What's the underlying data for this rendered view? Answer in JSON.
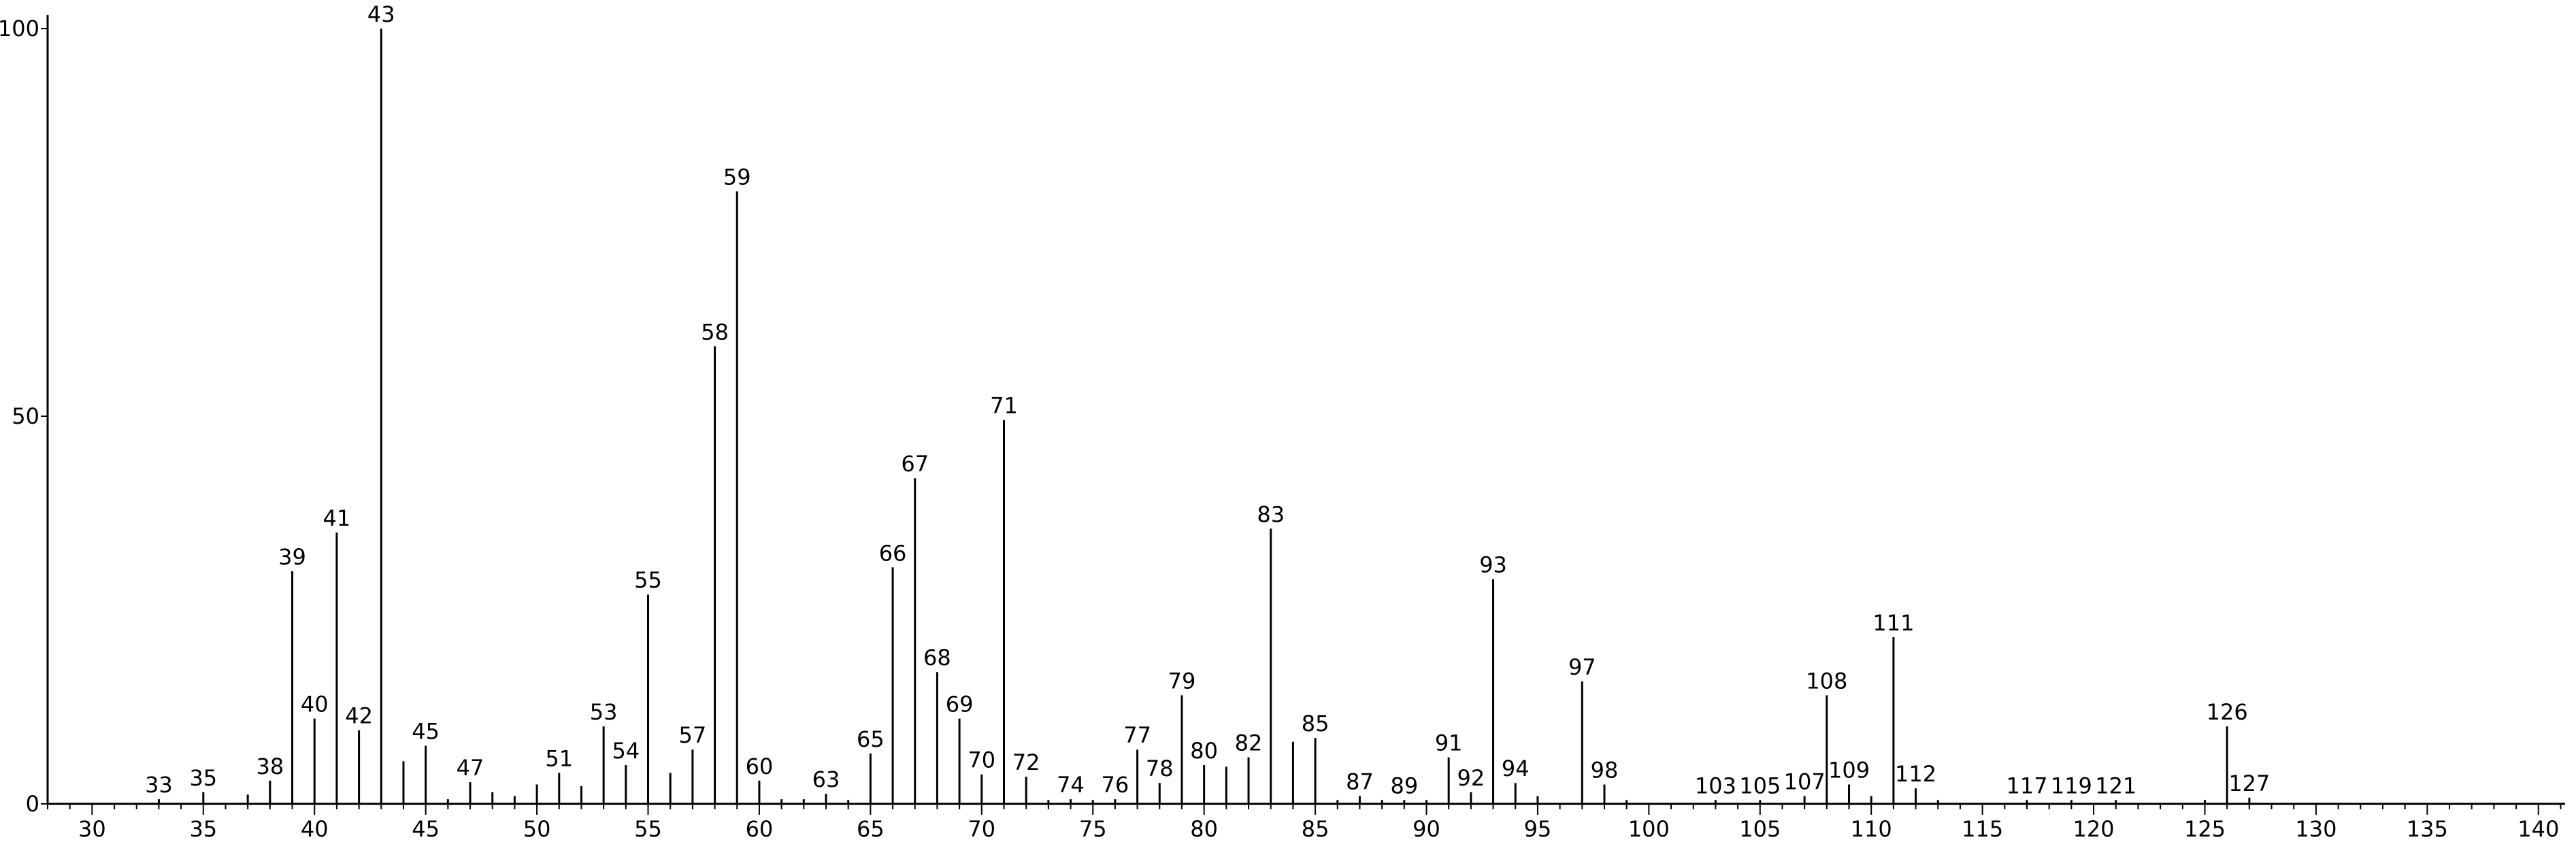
{
  "chart_data": {
    "type": "bar",
    "title": "",
    "xlabel": "",
    "ylabel": "",
    "xlim": [
      28,
      141.2
    ],
    "ylim": [
      0,
      100
    ],
    "grid": false,
    "x_ticks": [
      30,
      35,
      40,
      45,
      50,
      55,
      60,
      65,
      70,
      75,
      80,
      85,
      90,
      95,
      100,
      105,
      110,
      115,
      120,
      125,
      130,
      135,
      140
    ],
    "y_ticks": [
      0,
      50,
      100
    ],
    "peaks": [
      {
        "x": 33,
        "y": 0.6,
        "label": "33"
      },
      {
        "x": 35,
        "y": 1.5,
        "label": "35"
      },
      {
        "x": 37,
        "y": 1.2,
        "label": ""
      },
      {
        "x": 38,
        "y": 3.0,
        "label": "38"
      },
      {
        "x": 39,
        "y": 30.0,
        "label": "39"
      },
      {
        "x": 40,
        "y": 11.0,
        "label": "40"
      },
      {
        "x": 41,
        "y": 35.0,
        "label": "41"
      },
      {
        "x": 42,
        "y": 9.5,
        "label": "42"
      },
      {
        "x": 43,
        "y": 100.0,
        "label": "43"
      },
      {
        "x": 44,
        "y": 5.5,
        "label": ""
      },
      {
        "x": 45,
        "y": 7.5,
        "label": "45"
      },
      {
        "x": 46,
        "y": 0.6,
        "label": ""
      },
      {
        "x": 47,
        "y": 2.8,
        "label": "47"
      },
      {
        "x": 48,
        "y": 1.5,
        "label": ""
      },
      {
        "x": 49,
        "y": 1.0,
        "label": ""
      },
      {
        "x": 50,
        "y": 2.5,
        "label": ""
      },
      {
        "x": 51,
        "y": 4.0,
        "label": "51"
      },
      {
        "x": 52,
        "y": 2.3,
        "label": ""
      },
      {
        "x": 53,
        "y": 10.0,
        "label": "53"
      },
      {
        "x": 54,
        "y": 5.0,
        "label": "54"
      },
      {
        "x": 55,
        "y": 27.0,
        "label": "55"
      },
      {
        "x": 56,
        "y": 4.0,
        "label": ""
      },
      {
        "x": 57,
        "y": 7.0,
        "label": "57"
      },
      {
        "x": 58,
        "y": 59.0,
        "label": "58"
      },
      {
        "x": 59,
        "y": 79.0,
        "label": "59"
      },
      {
        "x": 60,
        "y": 3.0,
        "label": "60"
      },
      {
        "x": 61,
        "y": 0.6,
        "label": ""
      },
      {
        "x": 62,
        "y": 0.6,
        "label": ""
      },
      {
        "x": 63,
        "y": 1.3,
        "label": "63"
      },
      {
        "x": 64,
        "y": 0.5,
        "label": ""
      },
      {
        "x": 65,
        "y": 6.5,
        "label": "65"
      },
      {
        "x": 66,
        "y": 30.5,
        "label": "66"
      },
      {
        "x": 67,
        "y": 42.0,
        "label": "67"
      },
      {
        "x": 68,
        "y": 17.0,
        "label": "68"
      },
      {
        "x": 69,
        "y": 11.0,
        "label": "69"
      },
      {
        "x": 70,
        "y": 3.8,
        "label": "70"
      },
      {
        "x": 71,
        "y": 49.5,
        "label": "71"
      },
      {
        "x": 72,
        "y": 3.5,
        "label": "72"
      },
      {
        "x": 73,
        "y": 0.5,
        "label": ""
      },
      {
        "x": 74,
        "y": 0.6,
        "label": "74"
      },
      {
        "x": 75,
        "y": 0.5,
        "label": ""
      },
      {
        "x": 76,
        "y": 0.6,
        "label": "76"
      },
      {
        "x": 77,
        "y": 7.0,
        "label": "77"
      },
      {
        "x": 78,
        "y": 2.7,
        "label": "78"
      },
      {
        "x": 79,
        "y": 14.0,
        "label": "79"
      },
      {
        "x": 80,
        "y": 5.0,
        "label": "80"
      },
      {
        "x": 81,
        "y": 4.8,
        "label": ""
      },
      {
        "x": 82,
        "y": 6.0,
        "label": "82"
      },
      {
        "x": 83,
        "y": 35.5,
        "label": "83"
      },
      {
        "x": 84,
        "y": 8.0,
        "label": ""
      },
      {
        "x": 85,
        "y": 8.5,
        "label": "85"
      },
      {
        "x": 86,
        "y": 0.5,
        "label": ""
      },
      {
        "x": 87,
        "y": 1.0,
        "label": "87"
      },
      {
        "x": 88,
        "y": 0.5,
        "label": ""
      },
      {
        "x": 89,
        "y": 0.5,
        "label": "89"
      },
      {
        "x": 90,
        "y": 0.5,
        "label": ""
      },
      {
        "x": 91,
        "y": 6.0,
        "label": "91"
      },
      {
        "x": 92,
        "y": 1.5,
        "label": "92"
      },
      {
        "x": 93,
        "y": 29.0,
        "label": "93"
      },
      {
        "x": 94,
        "y": 2.7,
        "label": "94"
      },
      {
        "x": 95,
        "y": 1.0,
        "label": ""
      },
      {
        "x": 97,
        "y": 15.8,
        "label": "97"
      },
      {
        "x": 98,
        "y": 2.5,
        "label": "98"
      },
      {
        "x": 99,
        "y": 0.5,
        "label": ""
      },
      {
        "x": 103,
        "y": 0.5,
        "label": "103"
      },
      {
        "x": 105,
        "y": 0.5,
        "label": "105"
      },
      {
        "x": 107,
        "y": 1.0,
        "label": "107"
      },
      {
        "x": 108,
        "y": 14.0,
        "label": "108"
      },
      {
        "x": 109,
        "y": 2.5,
        "label": "109"
      },
      {
        "x": 110,
        "y": 1.0,
        "label": ""
      },
      {
        "x": 111,
        "y": 21.5,
        "label": "111"
      },
      {
        "x": 112,
        "y": 2.0,
        "label": "112"
      },
      {
        "x": 113,
        "y": 0.5,
        "label": ""
      },
      {
        "x": 117,
        "y": 0.5,
        "label": "117"
      },
      {
        "x": 119,
        "y": 0.5,
        "label": "119"
      },
      {
        "x": 121,
        "y": 0.5,
        "label": "121"
      },
      {
        "x": 125,
        "y": 0.5,
        "label": ""
      },
      {
        "x": 126,
        "y": 10.0,
        "label": "126"
      },
      {
        "x": 127,
        "y": 0.8,
        "label": "127"
      }
    ]
  }
}
